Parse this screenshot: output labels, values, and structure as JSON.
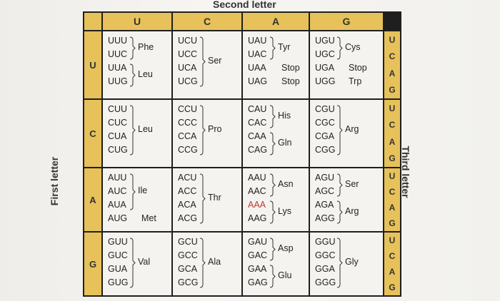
{
  "titles": {
    "second": "Second letter",
    "first": "First letter",
    "third": "Third letter"
  },
  "second_letters": [
    "U",
    "C",
    "A",
    "G"
  ],
  "first_letters": [
    "U",
    "C",
    "A",
    "G"
  ],
  "third_letters": [
    "U",
    "C",
    "A",
    "G"
  ],
  "rows": [
    {
      "first": "U",
      "cells": [
        {
          "codons": [
            "UUU",
            "UUC",
            "UUA",
            "UUG"
          ],
          "groups": [
            {
              "label": "Phe",
              "span": [
                0,
                1
              ]
            },
            {
              "label": "Leu",
              "span": [
                2,
                3
              ]
            }
          ]
        },
        {
          "codons": [
            "UCU",
            "UCC",
            "UCA",
            "UCG"
          ],
          "groups": [
            {
              "label": "Ser",
              "span": [
                0,
                3
              ]
            }
          ]
        },
        {
          "codons": [
            "UAU",
            "UAC",
            "UAA",
            "UAG"
          ],
          "groups": [
            {
              "label": "Tyr",
              "span": [
                0,
                1
              ]
            },
            {
              "label": "Stop",
              "span": [
                2,
                2
              ]
            },
            {
              "label": "Stop",
              "span": [
                3,
                3
              ]
            }
          ]
        },
        {
          "codons": [
            "UGU",
            "UGC",
            "UGA",
            "UGG"
          ],
          "groups": [
            {
              "label": "Cys",
              "span": [
                0,
                1
              ]
            },
            {
              "label": "Stop",
              "span": [
                2,
                2
              ]
            },
            {
              "label": "Trp",
              "span": [
                3,
                3
              ]
            }
          ]
        }
      ]
    },
    {
      "first": "C",
      "cells": [
        {
          "codons": [
            "CUU",
            "CUC",
            "CUA",
            "CUG"
          ],
          "groups": [
            {
              "label": "Leu",
              "span": [
                0,
                3
              ]
            }
          ]
        },
        {
          "codons": [
            "CCU",
            "CCC",
            "CCA",
            "CCG"
          ],
          "groups": [
            {
              "label": "Pro",
              "span": [
                0,
                3
              ]
            }
          ]
        },
        {
          "codons": [
            "CAU",
            "CAC",
            "CAA",
            "CAG"
          ],
          "groups": [
            {
              "label": "His",
              "span": [
                0,
                1
              ]
            },
            {
              "label": "Gln",
              "span": [
                2,
                3
              ]
            }
          ]
        },
        {
          "codons": [
            "CGU",
            "CGC",
            "CGA",
            "CGG"
          ],
          "groups": [
            {
              "label": "Arg",
              "span": [
                0,
                3
              ]
            }
          ]
        }
      ]
    },
    {
      "first": "A",
      "cells": [
        {
          "codons": [
            "AUU",
            "AUC",
            "AUA",
            "AUG"
          ],
          "groups": [
            {
              "label": "Ile",
              "span": [
                0,
                2
              ]
            },
            {
              "label": "Met",
              "span": [
                3,
                3
              ]
            }
          ]
        },
        {
          "codons": [
            "ACU",
            "ACC",
            "ACA",
            "ACG"
          ],
          "groups": [
            {
              "label": "Thr",
              "span": [
                0,
                3
              ]
            }
          ]
        },
        {
          "codons": [
            "AAU",
            "AAC",
            "AAA",
            "AAG"
          ],
          "groups": [
            {
              "label": "Asn",
              "span": [
                0,
                1
              ]
            },
            {
              "label": "Lys",
              "span": [
                2,
                3
              ]
            }
          ]
        },
        {
          "codons": [
            "AGU",
            "AGC",
            "AGA",
            "AGG"
          ],
          "groups": [
            {
              "label": "Ser",
              "span": [
                0,
                1
              ]
            },
            {
              "label": "Arg",
              "span": [
                2,
                3
              ]
            }
          ]
        }
      ]
    },
    {
      "first": "G",
      "cells": [
        {
          "codons": [
            "GUU",
            "GUC",
            "GUA",
            "GUG"
          ],
          "groups": [
            {
              "label": "Val",
              "span": [
                0,
                3
              ]
            }
          ]
        },
        {
          "codons": [
            "GCU",
            "GCC",
            "GCA",
            "GCG"
          ],
          "groups": [
            {
              "label": "Ala",
              "span": [
                0,
                3
              ]
            }
          ]
        },
        {
          "codons": [
            "GAU",
            "GAC",
            "GAA",
            "GAG"
          ],
          "groups": [
            {
              "label": "Asp",
              "span": [
                0,
                1
              ]
            },
            {
              "label": "Glu",
              "span": [
                2,
                3
              ]
            }
          ]
        },
        {
          "codons": [
            "GGU",
            "GGC",
            "GGA",
            "GGG"
          ],
          "groups": [
            {
              "label": "Gly",
              "span": [
                0,
                3
              ]
            }
          ]
        }
      ]
    }
  ],
  "colors": {
    "header_fill": "#e7c15a",
    "grid": "#1f1f1f",
    "cell_fill": "#f4f3f0",
    "highlight_codon": "#c0392b"
  }
}
